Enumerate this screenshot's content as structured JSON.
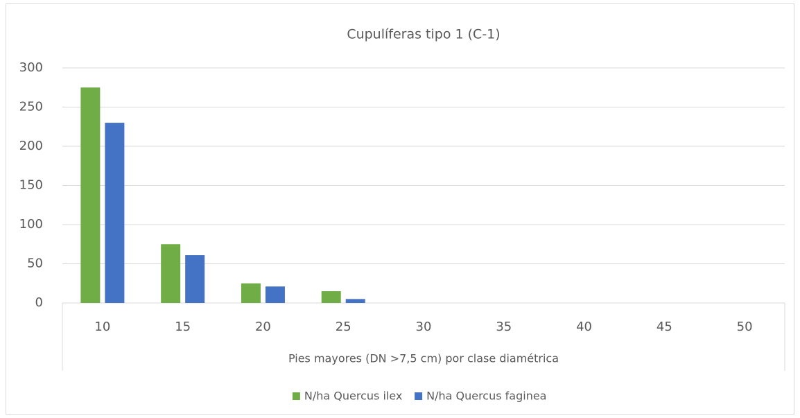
{
  "chart_data": {
    "type": "bar",
    "title": "Cupulíferas tipo 1 (C-1)",
    "x_label": "Pies mayores (DN >7,5 cm) por clase diamétrica",
    "categories": [
      "10",
      "15",
      "20",
      "25",
      "30",
      "35",
      "40",
      "45",
      "50"
    ],
    "series": [
      {
        "name": "N/ha Quercus ilex",
        "color": "#70ad47",
        "values": [
          275,
          75,
          25,
          15,
          0,
          0,
          0,
          0,
          0
        ]
      },
      {
        "name": "N/ha Quercus faginea",
        "color": "#4472c4",
        "values": [
          230,
          61,
          21,
          5,
          0,
          0,
          0,
          0,
          0
        ]
      }
    ],
    "ylim": [
      0,
      300
    ],
    "yticks": [
      0,
      50,
      100,
      150,
      200,
      250,
      300
    ],
    "grid": true,
    "legend": "bottom"
  }
}
